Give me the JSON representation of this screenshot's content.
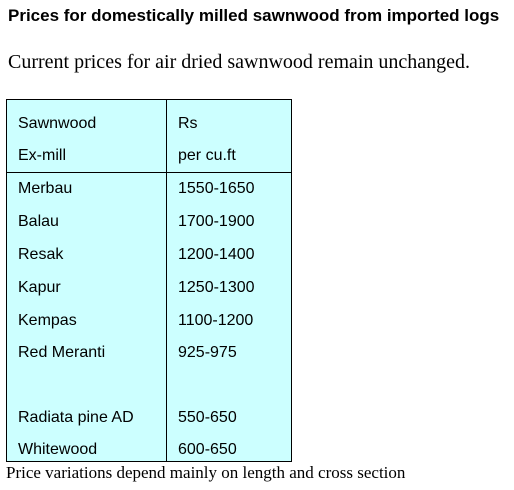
{
  "heading": "Prices for domestically milled sawnwood from imported logs",
  "subheading": "Current prices for air dried sawnwood remain unchanged.",
  "table": {
    "background_color": "#ccffff",
    "header": {
      "col1_line1": "Sawnwood",
      "col1_line2": "Ex-mill",
      "col2_line1": "Rs",
      "col2_line2": "per cu.ft"
    },
    "rows": [
      {
        "species": "Merbau",
        "price": "1550-1650"
      },
      {
        "species": "Balau",
        "price": "1700-1900"
      },
      {
        "species": "Resak",
        "price": "1200-1400"
      },
      {
        "species": "Kapur",
        "price": "1250-1300"
      },
      {
        "species": "Kempas",
        "price": "1100-1200"
      },
      {
        "species": "Red Meranti",
        "price": "925-975"
      },
      {
        "species": "Radiata pine AD",
        "price": "550-650"
      },
      {
        "species": "Whitewood",
        "price": "600-650"
      }
    ]
  },
  "footnote": "Price variations depend mainly on length and cross section"
}
